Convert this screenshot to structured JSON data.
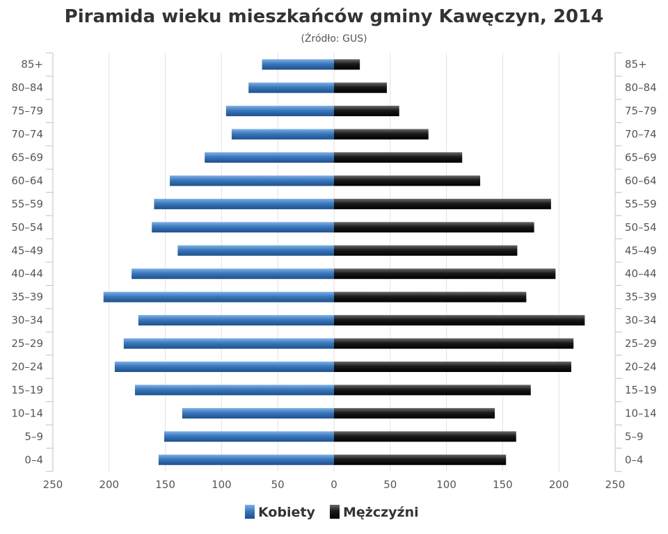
{
  "chart_data": {
    "type": "bar",
    "orientation": "horizontal-pyramid",
    "title": "Piramida wieku mieszkańców gminy Kawęczyn, 2014",
    "subtitle": "(Źródło: GUS)",
    "categories": [
      "0–4",
      "5–9",
      "10–14",
      "15–19",
      "20–24",
      "25–29",
      "30–34",
      "35–39",
      "40–44",
      "45–49",
      "50–54",
      "55–59",
      "60–64",
      "65–69",
      "70–74",
      "75–79",
      "80–84",
      "85+"
    ],
    "series": [
      {
        "name": "Kobiety",
        "color": "#3a78bd",
        "values": [
          156,
          151,
          135,
          177,
          195,
          187,
          174,
          205,
          180,
          139,
          162,
          160,
          146,
          115,
          91,
          96,
          76,
          64
        ]
      },
      {
        "name": "Mężczyźni",
        "color": "#111111",
        "values": [
          153,
          162,
          143,
          175,
          211,
          213,
          223,
          171,
          197,
          163,
          178,
          193,
          130,
          114,
          84,
          58,
          47,
          23
        ]
      }
    ],
    "xlim": [
      -250,
      250
    ],
    "x_ticks": [
      "250",
      "200",
      "150",
      "100",
      "50",
      "0",
      "50",
      "100",
      "150",
      "200",
      "250"
    ],
    "grid": true,
    "legend_position": "bottom-center"
  }
}
